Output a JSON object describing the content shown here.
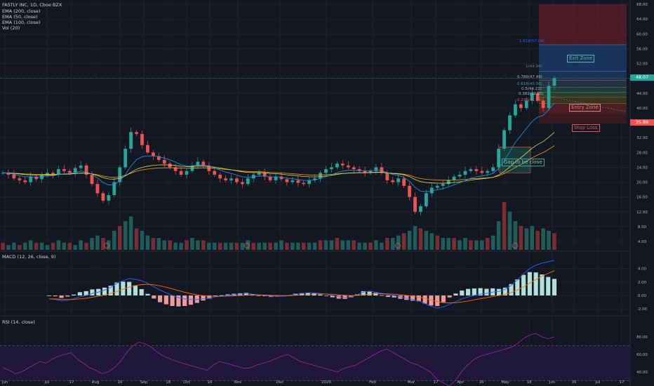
{
  "header": {
    "symbol_line": "FASTLY INC, 1D, Cboe BZX",
    "indicators": [
      "EMA (200, close)",
      "EMA (50, close)",
      "EMA (100, close)",
      "Vol (20)"
    ]
  },
  "panes": {
    "macd_label": "MACD (12, 26, close, 9)",
    "rsi_label": "RSI (14, close)"
  },
  "price_tags": {
    "current": "48.07",
    "stop": "35.86"
  },
  "annotations": {
    "exit_zone": "Exit Zone",
    "entry_zone": "Entry Zone",
    "stop_loss": "Stop Loss",
    "gap": "Gap to be close",
    "fib_1618": "1.618(57.04)",
    "fib_1": "1(49.94)",
    "fib_0786": "0.786(47.49)",
    "fib_0618": "0.618(45.56)",
    "fib_05": "0.5(44.21)",
    "fib_0382": "0.382(42.85)",
    "fib_0236": "0.236(41.18)"
  },
  "chart_data": {
    "type": "candlestick",
    "price_axis": {
      "ticks": [
        "68.00",
        "64.00",
        "60.00",
        "56.00",
        "52.00",
        "48.00",
        "44.00",
        "40.00",
        "36.00",
        "32.00",
        "28.00",
        "24.00",
        "20.00",
        "16.00",
        "12.00",
        "8.00",
        "4.00"
      ]
    },
    "macd_axis": {
      "ticks": [
        "4.00",
        "2.00",
        "0.00",
        "-2.00"
      ]
    },
    "rsi_axis": {
      "ticks": [
        "80.00",
        "60.00",
        "40.00"
      ]
    },
    "time_axis": {
      "labels": [
        "Jun",
        "Jul",
        "17",
        "Aug",
        "16",
        "Sep",
        "16",
        "Oct",
        "16",
        "Nov",
        "Dec",
        "2020",
        "Feb",
        "Mar",
        "17",
        "Apr",
        "16",
        "May",
        "18",
        "Jun",
        "16",
        "Jul",
        "17"
      ]
    },
    "levels": {
      "current_price": 48.07,
      "stop_loss": 35.86,
      "fib_1618": 57.04,
      "fib_1": 49.94,
      "fib_0786": 47.49,
      "fib_0618": 45.56,
      "fib_05": 44.21,
      "fib_0382": 42.85,
      "fib_0236": 41.18
    },
    "price_path": [
      22.5,
      22.0,
      21.0,
      20.5,
      20.0,
      21.5,
      20.8,
      21.8,
      22.5,
      22.0,
      23.5,
      23.0,
      22.5,
      23.8,
      24.5,
      22.0,
      19.5,
      17.0,
      15.0,
      16.5,
      20.0,
      24.0,
      29.0,
      33.5,
      33.0,
      30.0,
      28.0,
      27.0,
      26.0,
      25.0,
      24.0,
      23.0,
      22.0,
      23.0,
      24.5,
      25.5,
      24.5,
      23.0,
      22.0,
      21.0,
      20.5,
      21.0,
      20.0,
      19.5,
      21.0,
      22.0,
      22.5,
      21.5,
      20.5,
      21.5,
      20.8,
      20.0,
      20.5,
      19.8,
      19.5,
      20.5,
      21.0,
      22.5,
      23.5,
      24.0,
      25.0,
      24.5,
      24.0,
      23.5,
      23.0,
      22.5,
      23.0,
      24.0,
      22.5,
      20.5,
      20.0,
      21.0,
      19.0,
      16.0,
      12.0,
      13.5,
      17.0,
      18.5,
      19.0,
      19.5,
      20.5,
      21.5,
      22.0,
      23.0,
      23.5,
      23.0,
      22.5,
      23.0,
      24.0,
      29.0,
      34.0,
      38.0,
      41.0,
      40.0,
      42.0,
      44.0,
      42.0,
      40.0,
      46.0,
      48.07
    ],
    "volume": [
      3,
      2,
      3,
      2,
      3,
      4,
      3,
      3,
      2,
      3,
      4,
      3,
      3,
      2,
      4,
      3,
      5,
      6,
      5,
      4,
      8,
      10,
      12,
      14,
      9,
      8,
      6,
      5,
      5,
      4,
      4,
      3,
      3,
      4,
      5,
      4,
      4,
      3,
      3,
      3,
      3,
      3,
      3,
      3,
      4,
      3,
      3,
      3,
      3,
      3,
      4,
      3,
      3,
      3,
      3,
      3,
      3,
      4,
      4,
      4,
      5,
      4,
      4,
      4,
      3,
      3,
      3,
      4,
      3,
      5,
      5,
      6,
      7,
      8,
      10,
      9,
      8,
      7,
      6,
      5,
      5,
      5,
      4,
      5,
      4,
      4,
      4,
      5,
      6,
      12,
      20,
      16,
      12,
      10,
      9,
      10,
      8,
      9,
      8,
      7
    ],
    "macd": [
      -0.5,
      -0.6,
      -0.8,
      -0.7,
      -0.5,
      -0.2,
      0.0,
      0.3,
      0.5,
      0.8,
      1.2,
      1.8,
      2.2,
      2.5,
      2.4,
      2.2,
      1.8,
      1.3,
      0.8,
      0.4,
      0.0,
      -0.3,
      -0.5,
      -0.6,
      -0.6,
      -0.5,
      -0.4,
      -0.2,
      -0.1,
      0.0,
      0.1,
      0.2,
      0.3,
      0.2,
      0.1,
      0.0,
      -0.1,
      -0.1,
      -0.1,
      0.0,
      0.2,
      0.3,
      0.4,
      0.4,
      0.3,
      0.2,
      0.0,
      -0.2,
      -0.3,
      -0.2,
      0.1,
      0.5,
      0.6,
      0.5,
      0.3,
      0.1,
      0.0,
      -0.2,
      -0.4,
      -0.6,
      -0.8,
      -1.2,
      -1.6,
      -1.9,
      -1.7,
      -1.3,
      -0.9,
      -0.5,
      -0.2,
      0.0,
      0.2,
      0.3,
      0.5,
      0.6,
      0.9,
      1.5,
      2.3,
      3.2,
      4.0,
      4.5,
      4.8,
      5.0,
      5.2
    ],
    "rsi": [
      45,
      42,
      38,
      40,
      44,
      48,
      52,
      50,
      55,
      58,
      60,
      62,
      55,
      50,
      45,
      42,
      38,
      40,
      45,
      52,
      62,
      70,
      74,
      72,
      68,
      62,
      58,
      55,
      52,
      50,
      48,
      46,
      44,
      42,
      48,
      52,
      50,
      48,
      46,
      44,
      45,
      48,
      50,
      52,
      55,
      58,
      60,
      56,
      52,
      50,
      48,
      46,
      44,
      42,
      40,
      44,
      46,
      48,
      52,
      56,
      60,
      64,
      66,
      62,
      58,
      54,
      50,
      48,
      44,
      40,
      32,
      28,
      24,
      30,
      40,
      48,
      54,
      58,
      60,
      62,
      64,
      66,
      68,
      72,
      78,
      82,
      84,
      80,
      78,
      80
    ]
  }
}
